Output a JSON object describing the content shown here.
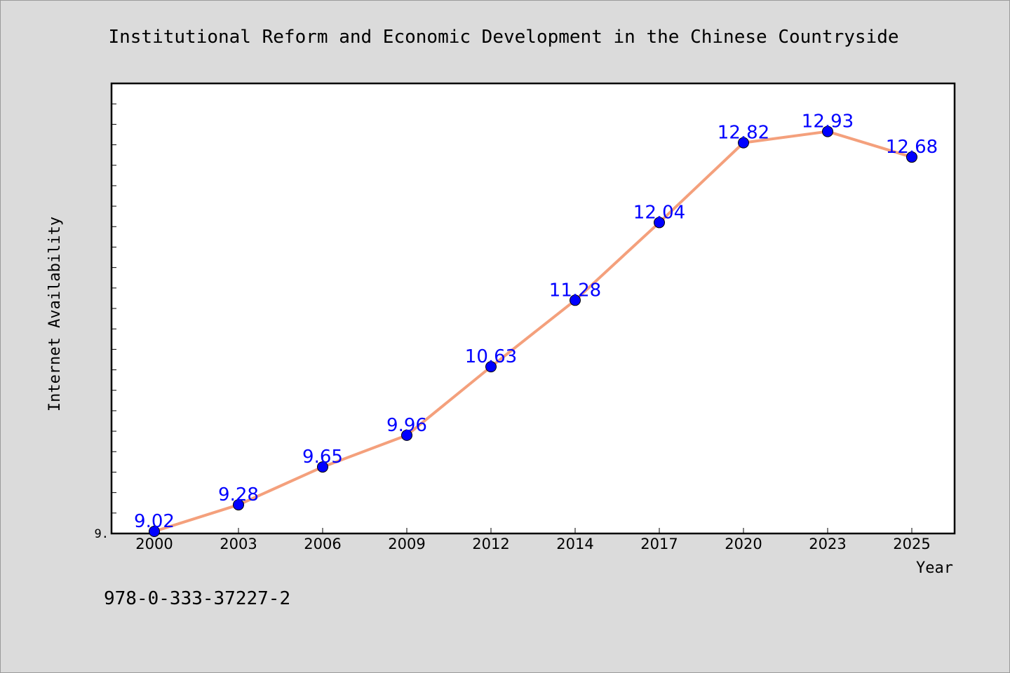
{
  "chart_data": {
    "type": "line",
    "title": "Institutional Reform and Economic Development in the Chinese Countryside",
    "xlabel": "Year",
    "ylabel": "Internet Availability",
    "categories": [
      "2000",
      "2003",
      "2006",
      "2009",
      "2012",
      "2014",
      "2017",
      "2020",
      "2023",
      "2025"
    ],
    "values": [
      9.02,
      9.28,
      9.65,
      9.96,
      10.63,
      11.28,
      12.04,
      12.82,
      12.93,
      12.68
    ],
    "data_labels": [
      "9.02",
      "9.28",
      "9.65",
      "9.96",
      "10.63",
      "11.28",
      "12.04",
      "12.82",
      "12.93",
      "12.68"
    ],
    "y_tick_labels": [
      "9."
    ],
    "ylim": [
      9.02,
      13.4
    ],
    "grid": false,
    "line_color": "#f4a07c",
    "marker_color": "#0000ff",
    "label_color": "#0000ff",
    "plot_background": "#ffffff",
    "page_background": "#dbdbdb"
  },
  "footer": {
    "isbn": "978-0-333-37227-2"
  }
}
